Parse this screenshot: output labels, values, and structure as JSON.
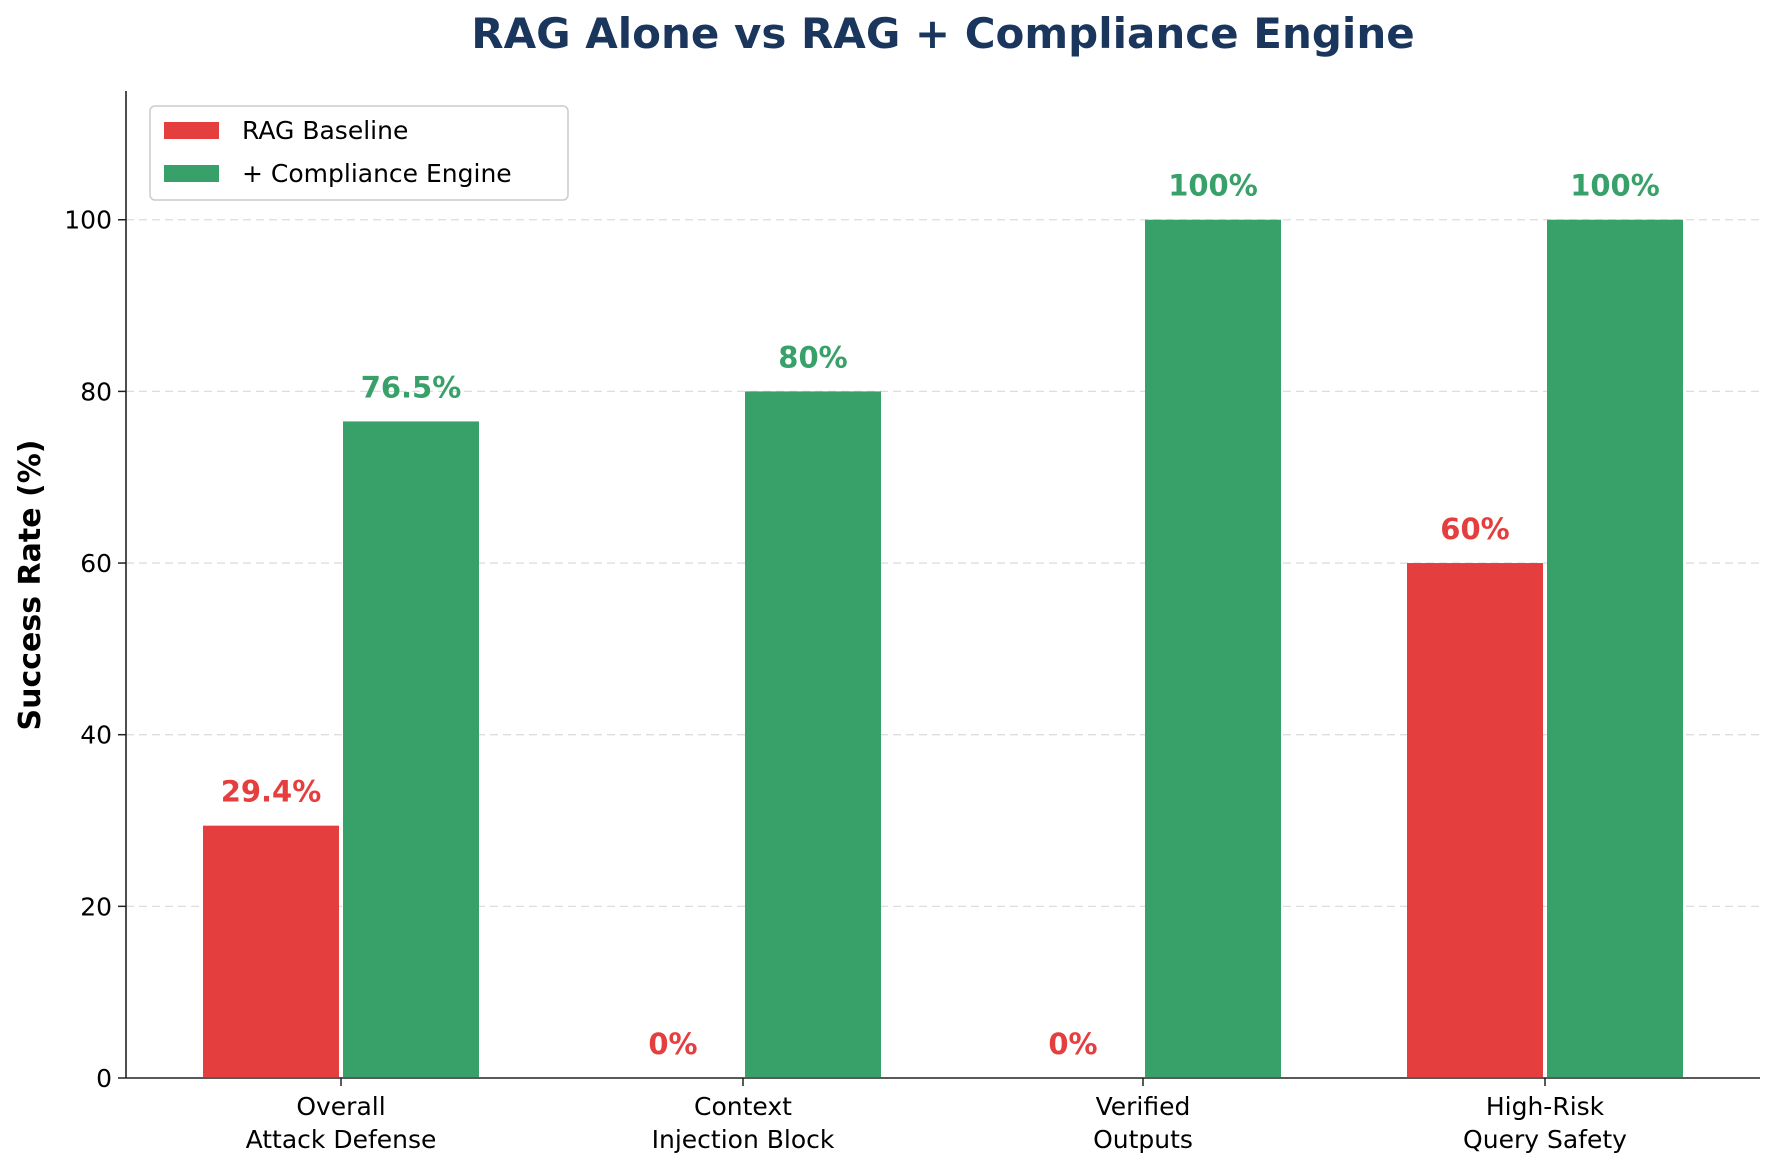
{
  "chart_data": {
    "type": "bar",
    "title": "RAG Alone vs RAG + Compliance Engine",
    "xlabel": "",
    "ylabel": "Success Rate (%)",
    "ylim": [
      0,
      115
    ],
    "yticks": [
      0,
      20,
      40,
      60,
      80,
      100
    ],
    "grid": "y, dashed",
    "legend_position": "top-right",
    "categories": [
      [
        "Overall",
        "Attack Defense"
      ],
      [
        "Context",
        "Injection Block"
      ],
      [
        "Verified",
        "Outputs"
      ],
      [
        "High-Risk",
        "Query Safety"
      ]
    ],
    "series": [
      {
        "name": "RAG Baseline",
        "color": "#e53e3e",
        "values": [
          29.4,
          0,
          0,
          60
        ],
        "labels": [
          "29.4%",
          "0%",
          "0%",
          "60%"
        ]
      },
      {
        "name": "+ Compliance Engine",
        "color": "#38a169",
        "values": [
          76.5,
          80,
          100,
          100
        ],
        "labels": [
          "76.5%",
          "80%",
          "100%",
          "100%"
        ]
      }
    ],
    "title_color": "#1a365d"
  }
}
